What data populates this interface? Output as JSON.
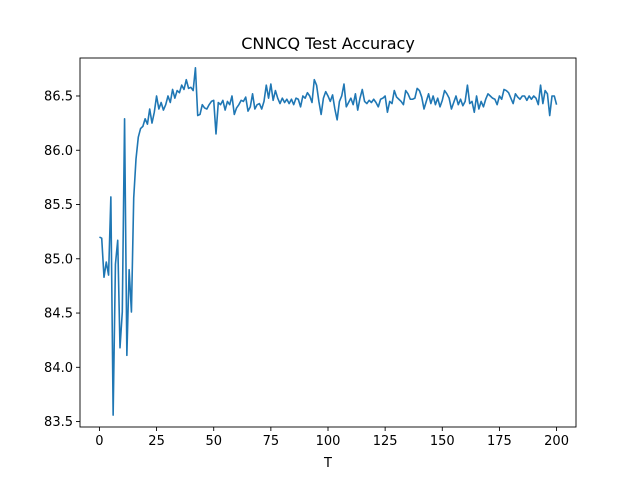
{
  "chart_data": {
    "type": "line",
    "title": "CNNCQ Test Accuracy",
    "xlabel": "T",
    "ylabel": "",
    "xlim": [
      -8.5,
      208.5
    ],
    "ylim": [
      83.45,
      86.85
    ],
    "xticks": [
      0,
      25,
      50,
      75,
      100,
      125,
      150,
      175,
      200
    ],
    "yticks": [
      83.5,
      84.0,
      84.5,
      85.0,
      85.5,
      86.0,
      86.5
    ],
    "ytick_labels": [
      "83.5",
      "84.0",
      "84.5",
      "85.0",
      "85.5",
      "86.0",
      "86.5"
    ],
    "xtick_labels": [
      "0",
      "25",
      "50",
      "75",
      "100",
      "125",
      "150",
      "175",
      "200"
    ],
    "grid": false,
    "line_color": "#1f77b4",
    "series": [
      {
        "x_start": 0,
        "x_step": 1,
        "values": [
          85.2,
          85.19,
          84.83,
          84.97,
          84.85,
          85.57,
          83.56,
          84.95,
          85.17,
          84.18,
          84.51,
          86.29,
          84.11,
          84.9,
          84.51,
          85.56,
          85.92,
          86.12,
          86.2,
          86.22,
          86.29,
          86.24,
          86.38,
          86.25,
          86.35,
          86.5,
          86.38,
          86.44,
          86.37,
          86.42,
          86.5,
          86.44,
          86.56,
          86.48,
          86.55,
          86.53,
          86.6,
          86.56,
          86.65,
          86.57,
          86.58,
          86.55,
          86.76,
          86.32,
          86.33,
          86.42,
          86.39,
          86.38,
          86.42,
          86.45,
          86.46,
          86.15,
          86.44,
          86.42,
          86.46,
          86.37,
          86.45,
          86.42,
          86.5,
          86.33,
          86.39,
          86.42,
          86.46,
          86.45,
          86.49,
          86.36,
          86.4,
          86.52,
          86.38,
          86.42,
          86.43,
          86.38,
          86.45,
          86.6,
          86.48,
          86.61,
          86.46,
          86.55,
          86.48,
          86.43,
          86.48,
          86.44,
          86.47,
          86.43,
          86.47,
          86.42,
          86.48,
          86.47,
          86.4,
          86.5,
          86.48,
          86.53,
          86.5,
          86.44,
          86.65,
          86.6,
          86.45,
          86.33,
          86.48,
          86.54,
          86.5,
          86.45,
          86.51,
          86.38,
          86.28,
          86.45,
          86.5,
          86.61,
          86.4,
          86.44,
          86.48,
          86.42,
          86.52,
          86.37,
          86.48,
          86.56,
          86.45,
          86.43,
          86.46,
          86.44,
          86.47,
          86.44,
          86.4,
          86.47,
          86.48,
          86.5,
          86.35,
          86.45,
          86.43,
          86.55,
          86.49,
          86.47,
          86.45,
          86.42,
          86.55,
          86.52,
          86.47,
          86.47,
          86.48,
          86.57,
          86.55,
          86.49,
          86.38,
          86.45,
          86.52,
          86.43,
          86.5,
          86.42,
          86.48,
          86.4,
          86.46,
          86.55,
          86.52,
          86.48,
          86.38,
          86.44,
          86.5,
          86.42,
          86.47,
          86.41,
          86.45,
          86.6,
          86.43,
          86.45,
          86.35,
          86.5,
          86.38,
          86.45,
          86.4,
          86.47,
          86.52,
          86.5,
          86.48,
          86.47,
          86.42,
          86.5,
          86.47,
          86.56,
          86.55,
          86.53,
          86.48,
          86.43,
          86.52,
          86.49,
          86.47,
          86.5,
          86.5,
          86.46,
          86.5,
          86.47,
          86.5,
          86.48,
          86.42,
          86.6,
          86.43,
          86.55,
          86.52,
          86.32,
          86.5,
          86.5,
          86.42
        ]
      }
    ]
  }
}
